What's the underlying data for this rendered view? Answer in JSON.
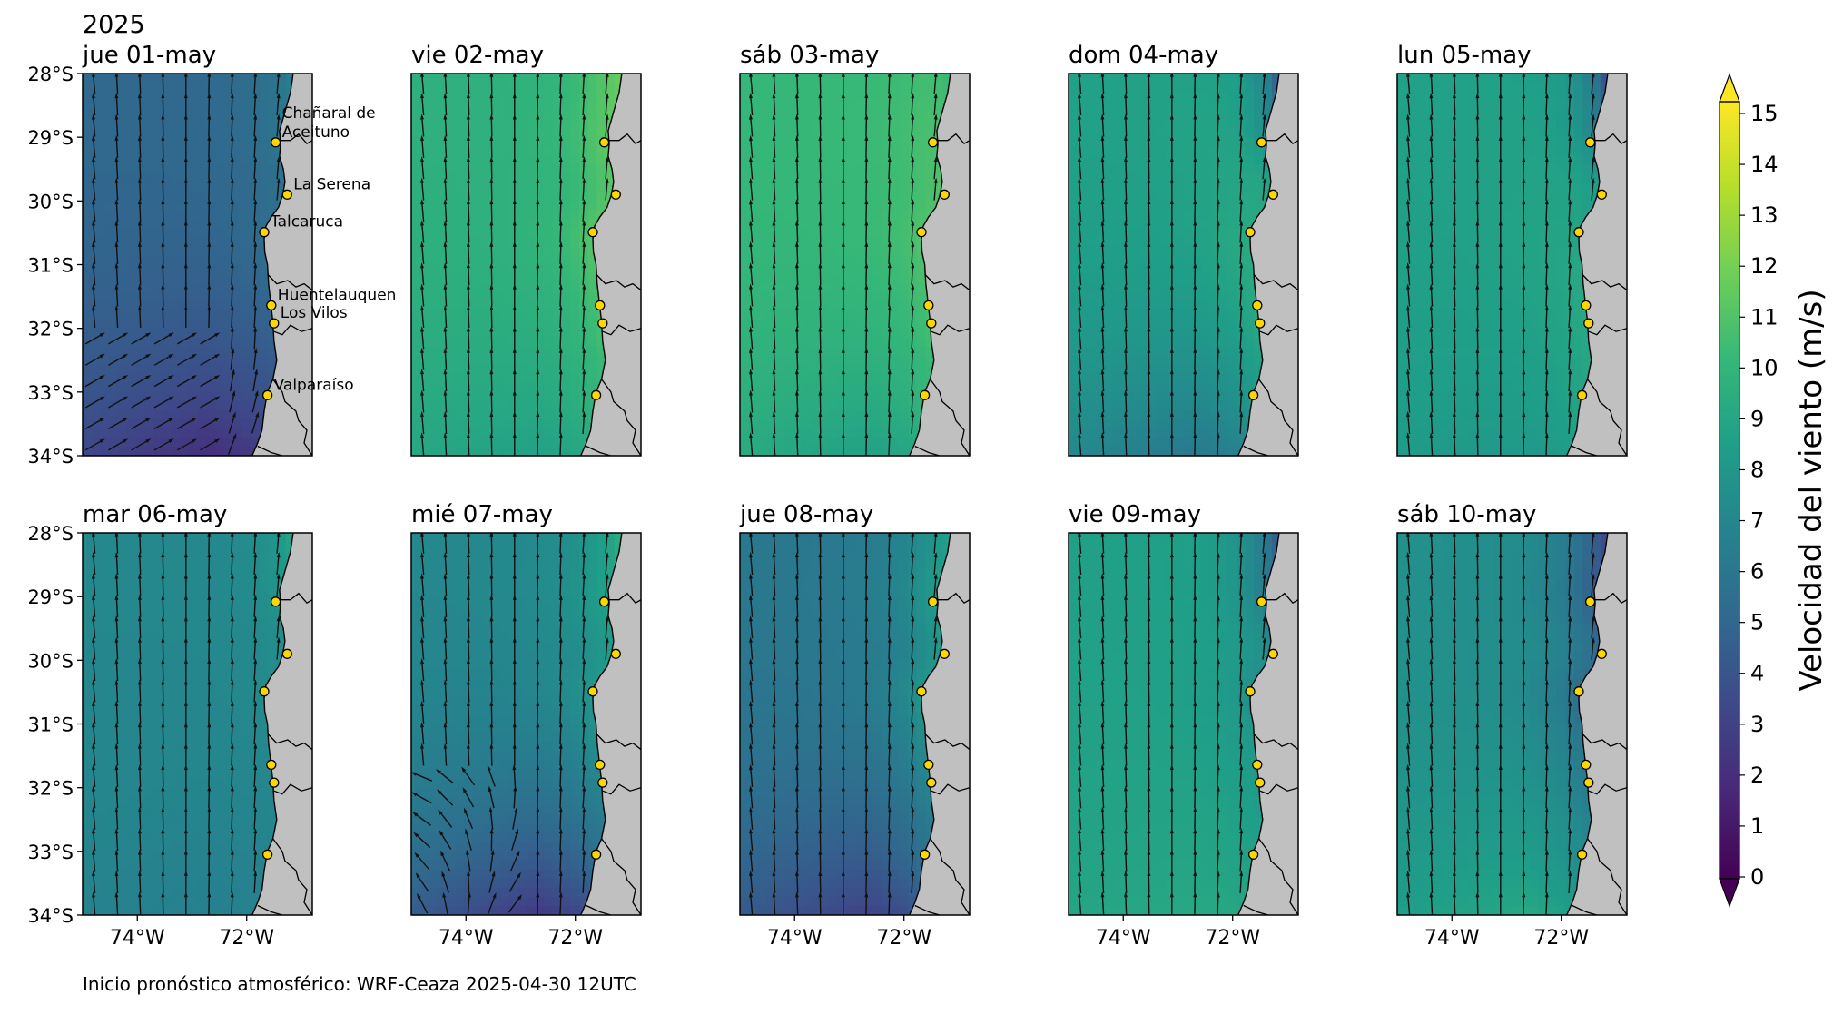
{
  "figure": {
    "year_label": "2025",
    "footer_note": "Inicio pronóstico atmosférico: WRF-Ceaza 2025-04-30 12UTC"
  },
  "colorbar": {
    "label": "Velocidad del viento (m/s)",
    "ticks": [
      "0",
      "1",
      "2",
      "3",
      "4",
      "5",
      "6",
      "7",
      "8",
      "9",
      "10",
      "11",
      "12",
      "13",
      "14",
      "15"
    ],
    "min": 0,
    "max": 15,
    "extend": "both",
    "colormap": "viridis",
    "stops": [
      "#440154",
      "#482878",
      "#3e4989",
      "#31688e",
      "#26828e",
      "#1f9e89",
      "#35b779",
      "#6ece58",
      "#b5de2b",
      "#fde725"
    ]
  },
  "colors": {
    "land": "#c0c0c0",
    "station_fill": "#ffd700",
    "station_edge": "#000000"
  },
  "axes": {
    "lat_ticks": [
      "28°S",
      "29°S",
      "30°S",
      "31°S",
      "32°S",
      "33°S",
      "34°S"
    ],
    "lon_ticks": [
      "74°W",
      "72°W"
    ],
    "lat_range": [
      -34,
      -28
    ],
    "lon_range": [
      -75.0,
      -70.8
    ]
  },
  "stations": [
    {
      "name": "Chañaral de\nAceituno",
      "lon": -71.47,
      "lat": -29.08,
      "label_lines": [
        "Chañaral de",
        "Aceituno"
      ]
    },
    {
      "name": "La Serena",
      "lon": -71.26,
      "lat": -29.9,
      "label_lines": [
        "La Serena"
      ]
    },
    {
      "name": "Talcaruca",
      "lon": -71.68,
      "lat": -30.49,
      "label_lines": [
        "Talcaruca"
      ]
    },
    {
      "name": "Huentelauquen",
      "lon": -71.55,
      "lat": -31.64,
      "label_lines": [
        "Huentelauquen"
      ]
    },
    {
      "name": "Los Vilos",
      "lon": -71.5,
      "lat": -31.92,
      "label_lines": [
        "Los Vilos"
      ]
    },
    {
      "name": "Valparaíso",
      "lon": -71.62,
      "lat": -33.05,
      "label_lines": [
        "Valparaíso"
      ]
    }
  ],
  "chart_data": {
    "type": "heatmap",
    "description_kind": "daily wind speed maps with wind vectors",
    "colorbar_label": "Velocidad del viento (m/s)",
    "panels": [
      {
        "title": "jue 01-may",
        "offshore_speed": 5.0,
        "coastal_speed": 5.5,
        "north_coast_speed": 6.5,
        "south_speed": 2.0,
        "direction": "northward, southwest-to-northeast veering near 33°S"
      },
      {
        "title": "vie 02-may",
        "offshore_speed": 9.5,
        "coastal_speed": 11.0,
        "north_coast_speed": 11.5,
        "south_speed": 8.5,
        "direction": "northward"
      },
      {
        "title": "sáb 03-may",
        "offshore_speed": 10.0,
        "coastal_speed": 11.0,
        "north_coast_speed": 10.0,
        "south_speed": 8.5,
        "direction": "northward"
      },
      {
        "title": "dom 04-may",
        "offshore_speed": 8.5,
        "coastal_speed": 10.0,
        "north_coast_speed": 4.0,
        "south_speed": 6.0,
        "direction": "northward"
      },
      {
        "title": "lun 05-may",
        "offshore_speed": 8.5,
        "coastal_speed": 9.5,
        "north_coast_speed": 3.0,
        "south_speed": 8.0,
        "direction": "northward"
      },
      {
        "title": "mar 06-may",
        "offshore_speed": 7.0,
        "coastal_speed": 7.0,
        "north_coast_speed": 9.0,
        "south_speed": 6.5,
        "direction": "northward"
      },
      {
        "title": "mié 07-may",
        "offshore_speed": 7.0,
        "coastal_speed": 8.0,
        "north_coast_speed": 9.5,
        "south_speed": 2.5,
        "direction": "northward, cyclonic turn in southwest"
      },
      {
        "title": "jue 08-may",
        "offshore_speed": 6.0,
        "coastal_speed": 8.0,
        "north_coast_speed": 8.5,
        "south_speed": 3.0,
        "direction": "northward"
      },
      {
        "title": "vie 09-may",
        "offshore_speed": 8.5,
        "coastal_speed": 8.0,
        "north_coast_speed": 4.0,
        "south_speed": 9.0,
        "direction": "northward"
      },
      {
        "title": "sáb 10-may",
        "offshore_speed": 7.5,
        "coastal_speed": 5.5,
        "north_coast_speed": 3.0,
        "south_speed": 9.0,
        "direction": "northward"
      }
    ]
  }
}
